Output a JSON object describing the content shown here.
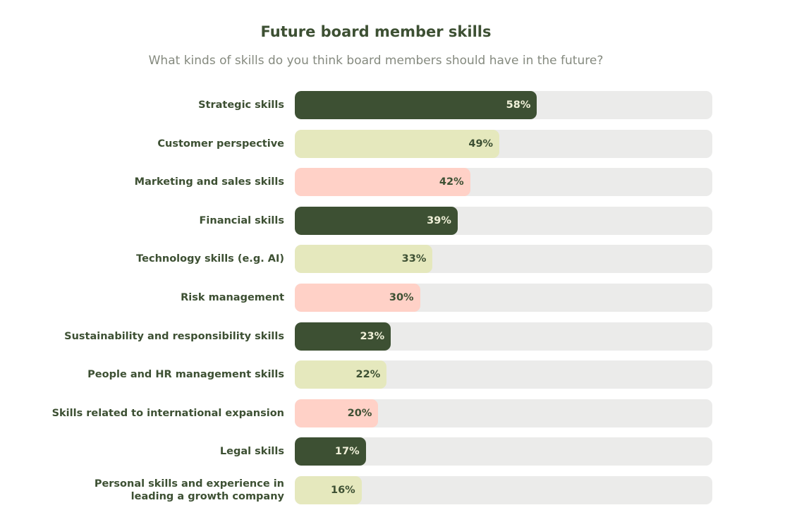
{
  "chart_data": {
    "type": "bar",
    "orientation": "horizontal",
    "title": "Future board member skills",
    "subtitle": "What kinds of skills do you think board members should have in the future?",
    "xlim": [
      0,
      100
    ],
    "grid": false,
    "categories": [
      "Strategic skills",
      "Customer perspective",
      "Marketing and sales skills",
      "Financial skills",
      "Technology skills (e.g. AI)",
      "Risk management",
      "Sustainability and responsibility skills",
      "People and HR management skills",
      "Skills related to international expansion",
      "Legal skills",
      "Personal skills and experience in leading a growth company"
    ],
    "values": [
      58,
      49,
      42,
      39,
      33,
      30,
      23,
      22,
      20,
      17,
      16
    ],
    "value_labels": [
      "58%",
      "49%",
      "42%",
      "39%",
      "33%",
      "30%",
      "23%",
      "22%",
      "20%",
      "17%",
      "16%"
    ],
    "colors": {
      "dark": "#3d5033",
      "yellow": "#e5e8bd",
      "pink": "#ffd1c7",
      "track": "#ebebea",
      "text": "#3d5033",
      "value_on_dark": "#f0f0d8"
    },
    "bar_color_cycle": [
      "dark",
      "yellow",
      "pink"
    ]
  }
}
